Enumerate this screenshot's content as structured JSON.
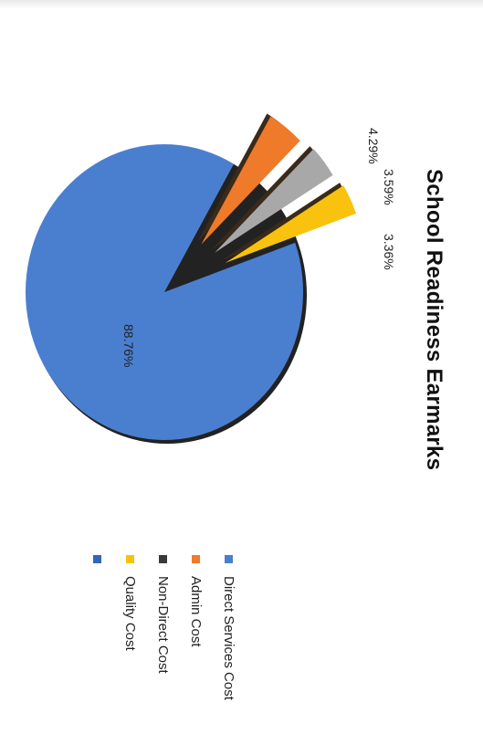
{
  "chart_data": {
    "type": "pie",
    "title": "School Readiness Earmarks",
    "categories": [
      "Direct Services Cost",
      "Admin Cost",
      "Non-Direct Cost",
      "Quality Cost"
    ],
    "values": [
      88.76,
      4.29,
      3.59,
      3.36
    ],
    "value_labels": [
      "88.76%",
      "4.29%",
      "3.59%",
      "3.36%"
    ],
    "colors": [
      "#4a7fd0",
      "#ee7a2a",
      "#a8a8a8",
      "#f8c20e"
    ],
    "exploded": [
      false,
      true,
      true,
      true
    ],
    "legend_position": "right",
    "legend_markers": [
      "#4a7fd0",
      "#ee7a2a",
      "#3a3a3a",
      "#f8c20e"
    ]
  },
  "extra_legend_marker_color": "#3366bb"
}
